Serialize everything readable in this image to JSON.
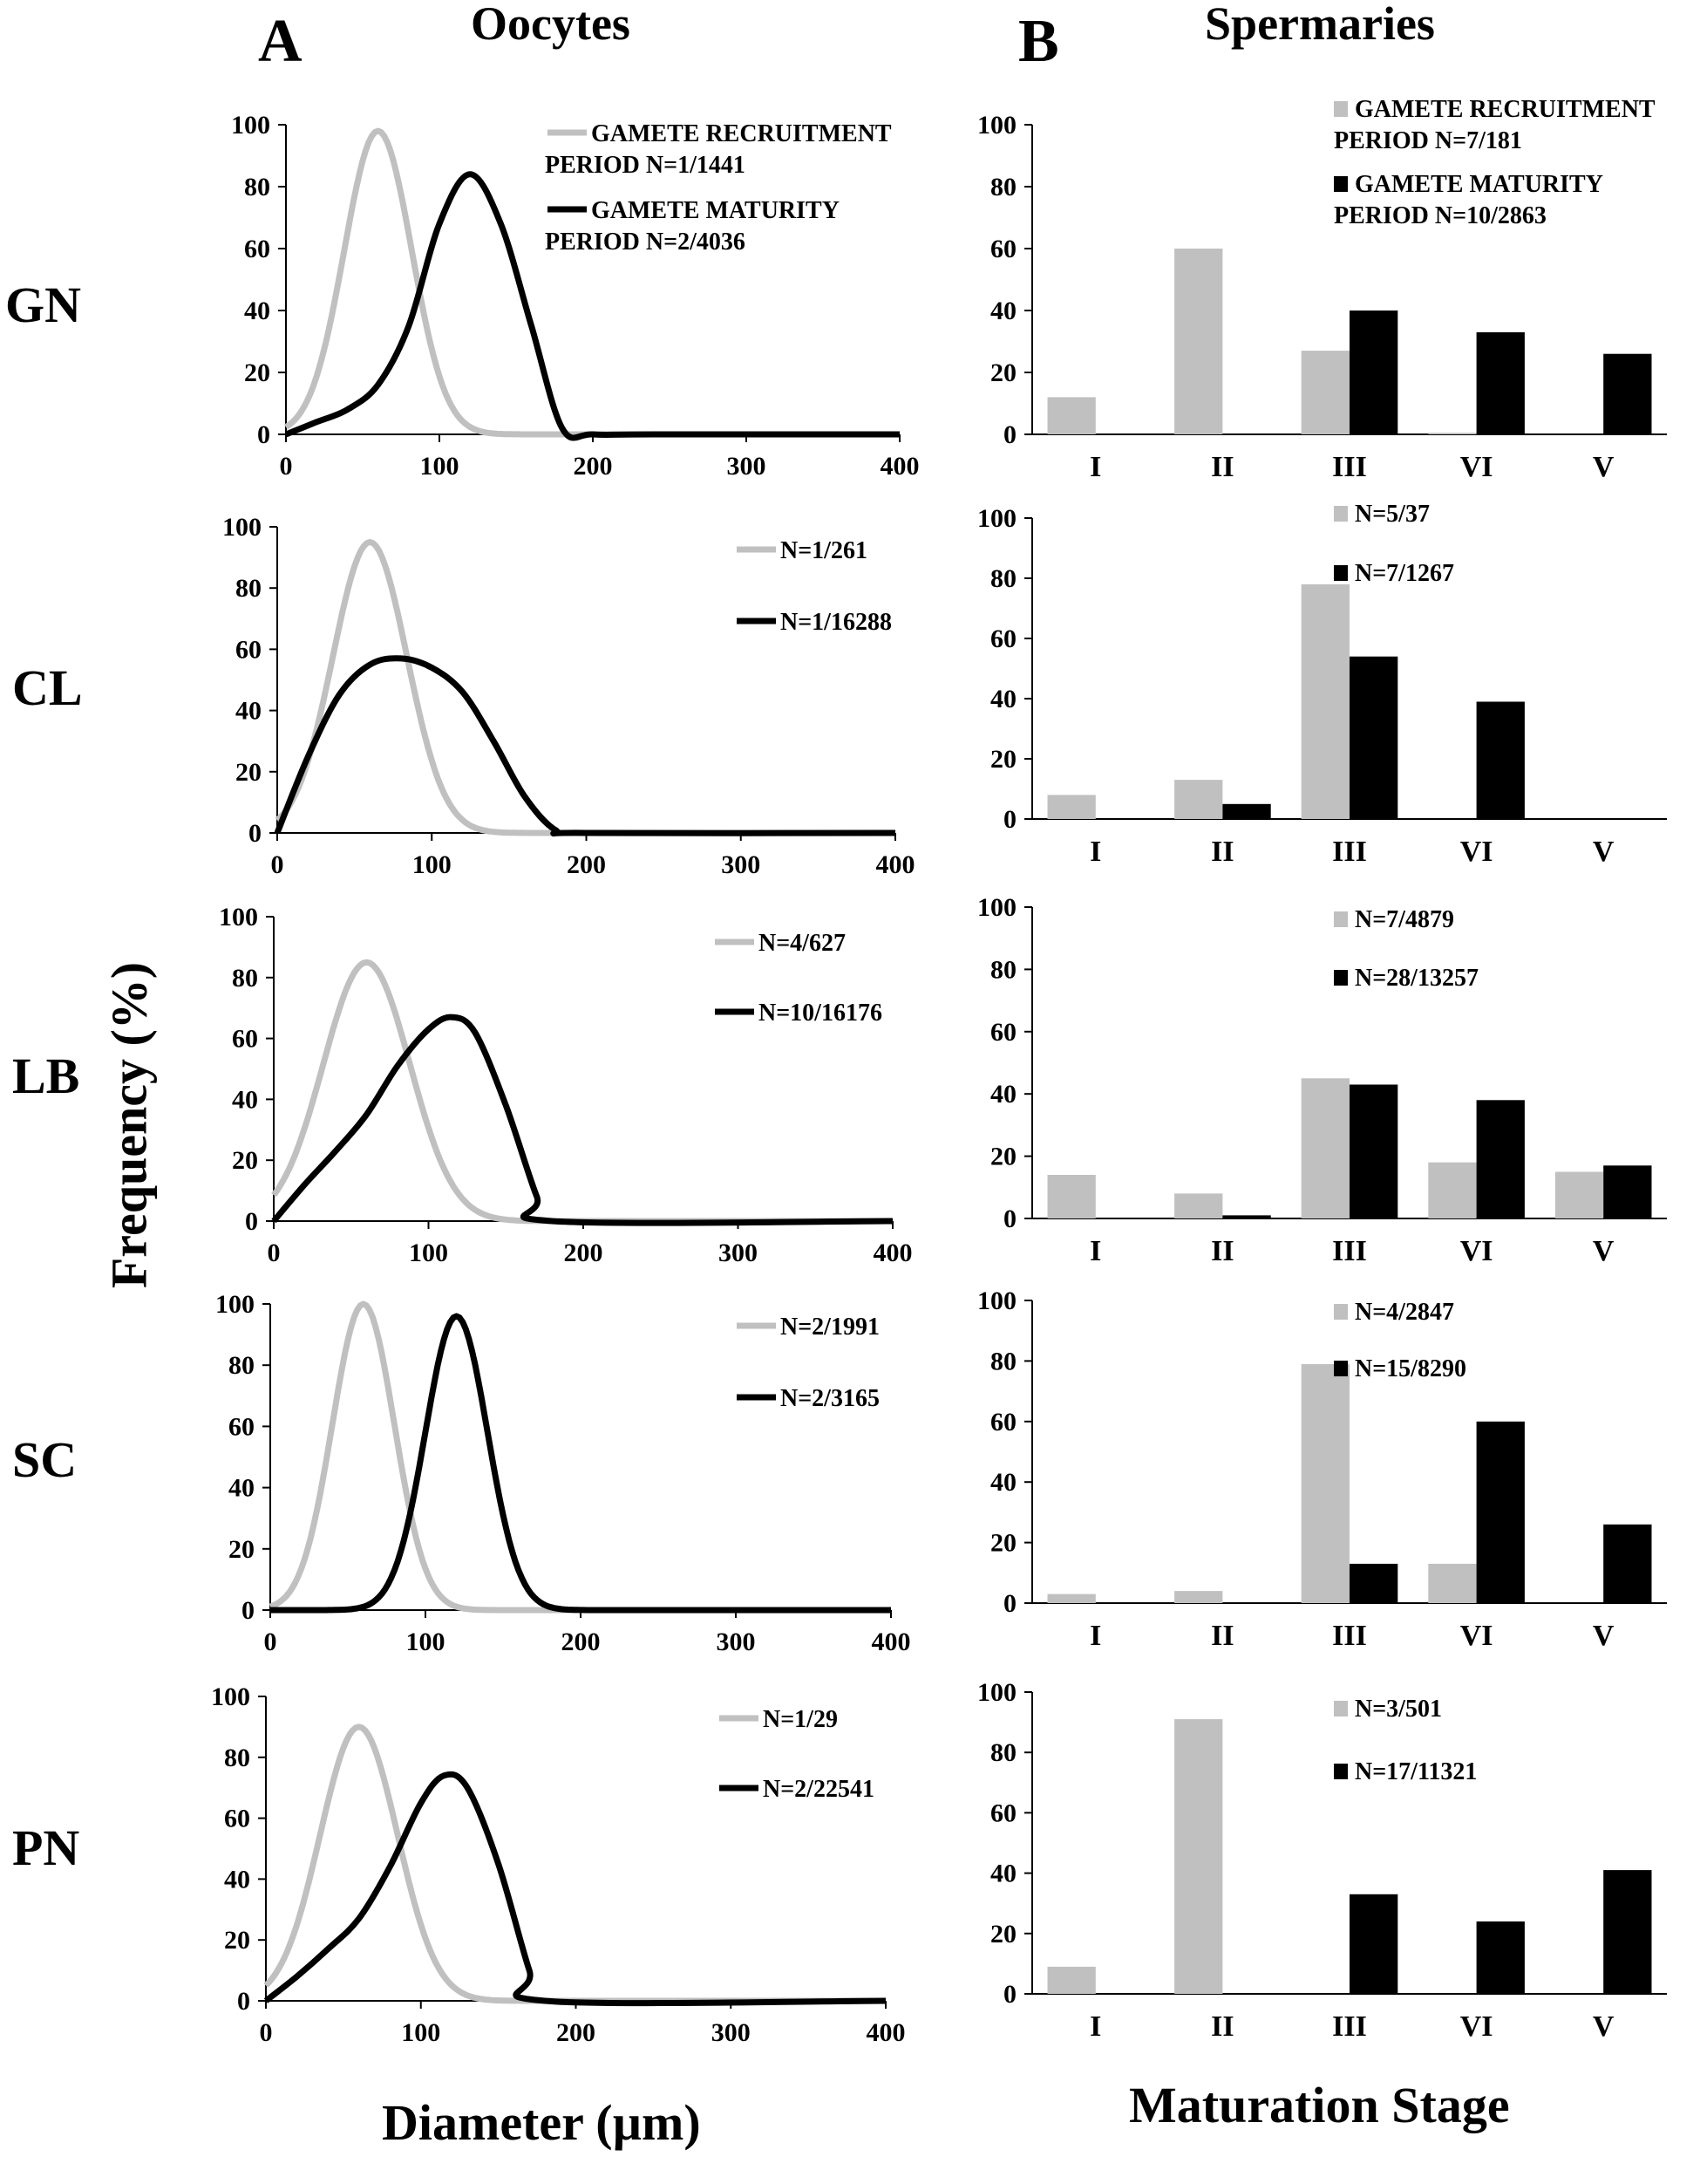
{
  "panel_labels": {
    "a": "A",
    "b": "B"
  },
  "column_titles": {
    "oocytes": "Oocytes",
    "spermaries": "Spermaries"
  },
  "axis_titles": {
    "y": "Frequency (%)",
    "x_oocytes": "Diameter (µm)",
    "x_spermaries": "Maturation Stage"
  },
  "colors": {
    "recruitment": "#c0c0c0",
    "maturity": "#000000"
  },
  "chart_data": [
    {
      "type": "line",
      "site": "GN",
      "panel": "A",
      "xlim": [
        0,
        400
      ],
      "ylim": [
        0,
        100
      ],
      "x_ticks": [
        0,
        100,
        200,
        300,
        400
      ],
      "y_ticks": [
        0,
        20,
        40,
        60,
        80,
        100
      ],
      "series": [
        {
          "name": "GAMETE RECRUITMENT PERIOD N=1/1441",
          "legend_lines": [
            "GAMETE RECRUITMENT",
            "PERIOD  N=1/1441"
          ],
          "color": "#c0c0c0",
          "mean": 60,
          "sd": 22,
          "peak": 98
        },
        {
          "name": "GAMETE MATURITY PERIOD N=2/4036",
          "legend_lines": [
            "GAMETE MATURITY",
            "PERIOD  N=2/4036"
          ],
          "color": "#000000",
          "x": [
            0,
            20,
            40,
            60,
            80,
            100,
            120,
            140,
            160,
            180,
            200,
            240,
            400
          ],
          "y": [
            0,
            4,
            8,
            16,
            35,
            68,
            84,
            68,
            35,
            2,
            0,
            0,
            0
          ]
        }
      ]
    },
    {
      "type": "line",
      "site": "CL",
      "panel": "A",
      "xlim": [
        0,
        400
      ],
      "ylim": [
        0,
        100
      ],
      "x_ticks": [
        0,
        100,
        200,
        300,
        400
      ],
      "y_ticks": [
        0,
        20,
        40,
        60,
        80,
        100
      ],
      "series": [
        {
          "name": "N=1/261",
          "legend_lines": [
            "N=1/261"
          ],
          "color": "#c0c0c0",
          "mean": 60,
          "sd": 24,
          "peak": 95
        },
        {
          "name": "N=1/16288",
          "legend_lines": [
            "N=1/16288"
          ],
          "color": "#000000",
          "x": [
            0,
            20,
            40,
            60,
            80,
            100,
            120,
            140,
            160,
            180,
            200,
            400
          ],
          "y": [
            0,
            25,
            45,
            55,
            57,
            54,
            46,
            30,
            12,
            1,
            0,
            0
          ]
        }
      ]
    },
    {
      "type": "line",
      "site": "LB",
      "panel": "A",
      "xlim": [
        0,
        400
      ],
      "ylim": [
        0,
        100
      ],
      "x_ticks": [
        0,
        100,
        200,
        300,
        400
      ],
      "y_ticks": [
        0,
        20,
        40,
        60,
        80,
        100
      ],
      "series": [
        {
          "name": "N=4/627",
          "legend_lines": [
            "N=4/627"
          ],
          "color": "#c0c0c0",
          "mean": 60,
          "sd": 28,
          "peak": 85
        },
        {
          "name": "N=10/16176",
          "legend_lines": [
            "N=10/16176"
          ],
          "color": "#000000",
          "x": [
            0,
            20,
            40,
            60,
            80,
            100,
            115,
            130,
            150,
            170,
            180,
            400
          ],
          "y": [
            0,
            12,
            23,
            35,
            51,
            63,
            67,
            62,
            38,
            8,
            0,
            0
          ]
        }
      ]
    },
    {
      "type": "line",
      "site": "SC",
      "panel": "A",
      "xlim": [
        0,
        400
      ],
      "ylim": [
        0,
        100
      ],
      "x_ticks": [
        0,
        100,
        200,
        300,
        400
      ],
      "y_ticks": [
        0,
        20,
        40,
        60,
        80,
        100
      ],
      "series": [
        {
          "name": "N=2/1991",
          "legend_lines": [
            "N=2/1991"
          ],
          "color": "#c0c0c0",
          "mean": 60,
          "sd": 20,
          "peak": 100
        },
        {
          "name": "N=2/3165",
          "legend_lines": [
            "N=2/3165"
          ],
          "color": "#000000",
          "mean": 120,
          "sd": 20,
          "peak": 96
        }
      ]
    },
    {
      "type": "line",
      "site": "PN",
      "panel": "A",
      "xlim": [
        0,
        400
      ],
      "ylim": [
        0,
        100
      ],
      "x_ticks": [
        0,
        100,
        200,
        300,
        400
      ],
      "y_ticks": [
        0,
        20,
        40,
        60,
        80,
        100
      ],
      "series": [
        {
          "name": "N=1/29",
          "legend_lines": [
            "N=1/29"
          ],
          "color": "#c0c0c0",
          "mean": 60,
          "sd": 25,
          "peak": 90
        },
        {
          "name": "N=2/22541",
          "legend_lines": [
            "N=2/22541"
          ],
          "color": "#000000",
          "x": [
            0,
            20,
            40,
            60,
            80,
            100,
            115,
            130,
            150,
            170,
            180,
            400
          ],
          "y": [
            0,
            8,
            17,
            27,
            44,
            65,
            74,
            70,
            45,
            10,
            0,
            0
          ]
        }
      ]
    },
    {
      "type": "bar",
      "site": "GN",
      "panel": "B",
      "categories": [
        "I",
        "II",
        "III",
        "VI",
        "V"
      ],
      "ylim": [
        0,
        100
      ],
      "y_ticks": [
        0,
        20,
        40,
        60,
        80,
        100
      ],
      "series": [
        {
          "name": "GAMETE RECRUITMENT PERIOD N=7/181",
          "legend_lines": [
            "GAMETE RECRUITMENT",
            "PERIOD  N=7/181"
          ],
          "color": "#c0c0c0",
          "values": [
            12,
            60,
            27,
            0.5,
            0
          ]
        },
        {
          "name": "GAMETE MATURITY PERIOD N=10/2863",
          "legend_lines": [
            "GAMETE MATURITY",
            "PERIOD  N=10/2863"
          ],
          "color": "#000000",
          "values": [
            0,
            0,
            40,
            33,
            26
          ]
        }
      ]
    },
    {
      "type": "bar",
      "site": "CL",
      "panel": "B",
      "categories": [
        "I",
        "II",
        "III",
        "VI",
        "V"
      ],
      "ylim": [
        0,
        100
      ],
      "y_ticks": [
        0,
        20,
        40,
        60,
        80,
        100
      ],
      "series": [
        {
          "name": "N=5/37",
          "legend_lines": [
            "N=5/37"
          ],
          "color": "#c0c0c0",
          "values": [
            8,
            13,
            78,
            0,
            0
          ]
        },
        {
          "name": "N=7/1267",
          "legend_lines": [
            "N=7/1267"
          ],
          "color": "#000000",
          "values": [
            0,
            5,
            54,
            39,
            0
          ]
        }
      ]
    },
    {
      "type": "bar",
      "site": "LB",
      "panel": "B",
      "categories": [
        "I",
        "II",
        "III",
        "VI",
        "V"
      ],
      "ylim": [
        0,
        100
      ],
      "y_ticks": [
        0,
        20,
        40,
        60,
        80,
        100
      ],
      "series": [
        {
          "name": "N=7/4879",
          "legend_lines": [
            "N=7/4879"
          ],
          "color": "#c0c0c0",
          "values": [
            14,
            8,
            45,
            18,
            15
          ]
        },
        {
          "name": "N=28/13257",
          "legend_lines": [
            "N=28/13257"
          ],
          "color": "#000000",
          "values": [
            0,
            1,
            43,
            38,
            17
          ]
        }
      ]
    },
    {
      "type": "bar",
      "site": "SC",
      "panel": "B",
      "categories": [
        "I",
        "II",
        "III",
        "VI",
        "V"
      ],
      "ylim": [
        0,
        100
      ],
      "y_ticks": [
        0,
        20,
        40,
        60,
        80,
        100
      ],
      "series": [
        {
          "name": "N=4/2847",
          "legend_lines": [
            "N=4/2847"
          ],
          "color": "#c0c0c0",
          "values": [
            3,
            4,
            79,
            13,
            0
          ]
        },
        {
          "name": "N=15/8290",
          "legend_lines": [
            "N=15/8290"
          ],
          "color": "#000000",
          "values": [
            0,
            0,
            13,
            60,
            26
          ]
        }
      ]
    },
    {
      "type": "bar",
      "site": "PN",
      "panel": "B",
      "categories": [
        "I",
        "II",
        "III",
        "VI",
        "V"
      ],
      "ylim": [
        0,
        100
      ],
      "y_ticks": [
        0,
        20,
        40,
        60,
        80,
        100
      ],
      "series": [
        {
          "name": "N=3/501",
          "legend_lines": [
            "N=3/501"
          ],
          "color": "#c0c0c0",
          "values": [
            9,
            91,
            0,
            0,
            0
          ]
        },
        {
          "name": "N=17/11321",
          "legend_lines": [
            "N=17/11321"
          ],
          "color": "#000000",
          "values": [
            0,
            0,
            33,
            24,
            41
          ]
        }
      ]
    }
  ]
}
